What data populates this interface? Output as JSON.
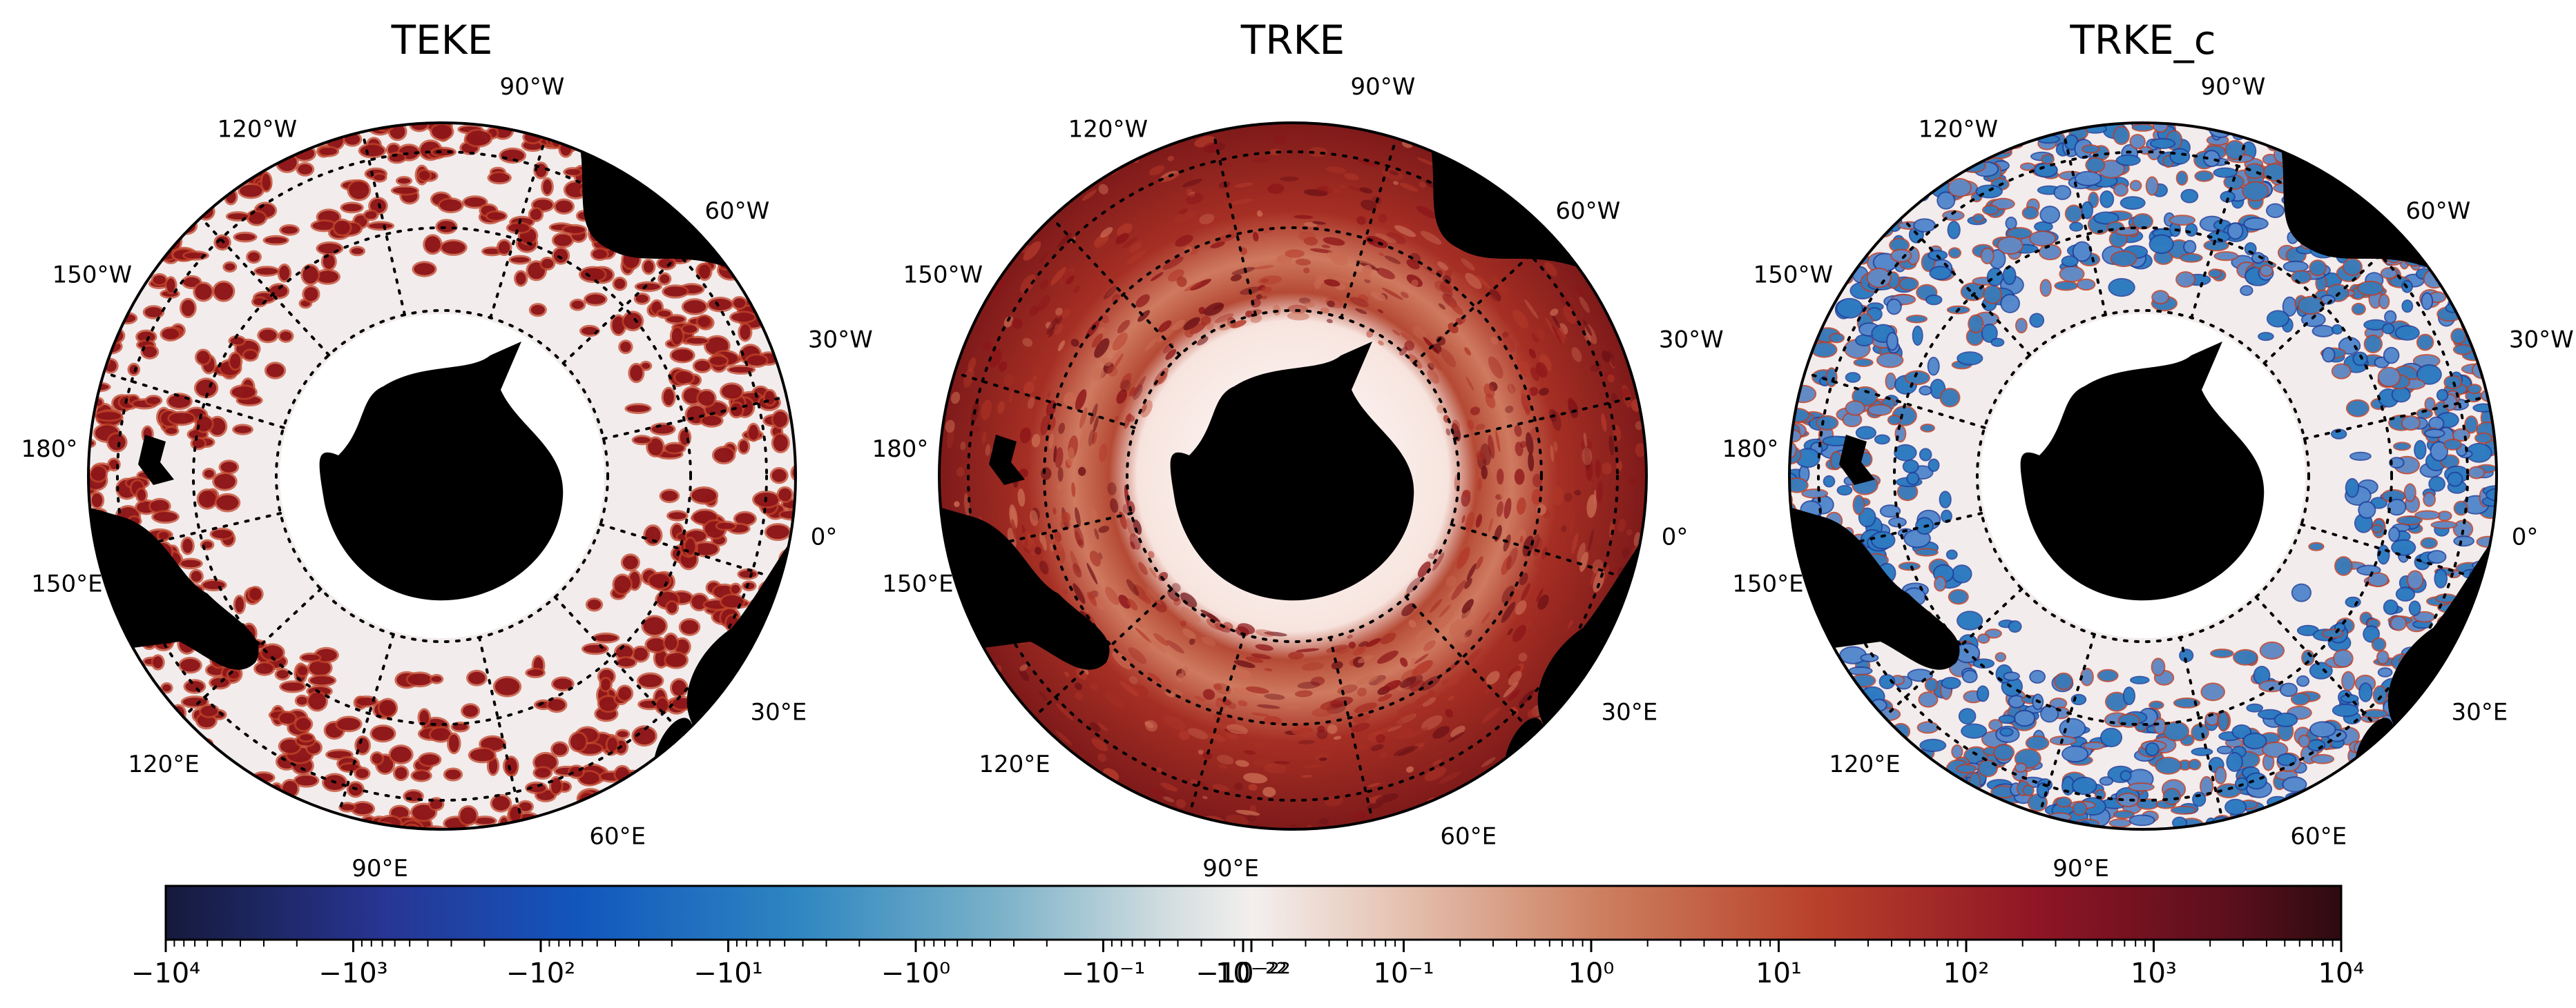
{
  "panels": [
    {
      "title": "TEKE",
      "field": "sparse-positive"
    },
    {
      "title": "TRKE",
      "field": "dense-positive"
    },
    {
      "title": "TRKE_c",
      "field": "sparse-signed"
    }
  ],
  "meridian_labels": [
    "120°W",
    "90°W",
    "60°W",
    "150°W",
    "30°W",
    "180°",
    "0°",
    "150°E",
    "30°E",
    "120°E",
    "90°E",
    "60°E"
  ],
  "colorbar": {
    "colormap": "balance (navy-blue-white-red-maroon)",
    "scale": "symlog",
    "range": [
      -10000,
      10000
    ],
    "tick_labels": [
      "−10⁴",
      "−10³",
      "−10²",
      "−10¹",
      "−10⁰",
      "−10⁻¹",
      "−10⁻²²",
      "10⁻²²",
      "10⁻¹",
      "10⁰",
      "10¹",
      "10²",
      "10³",
      "10⁴"
    ]
  },
  "colors": {
    "land": "#000000",
    "ocean_background": "#f2ecec",
    "ice_free_white": "#ffffff",
    "positive_dark": "#8c1418",
    "positive_mid": "#c0442a",
    "negative_mid": "#2f7fc4",
    "negative_dark": "#1f3f9a"
  }
}
